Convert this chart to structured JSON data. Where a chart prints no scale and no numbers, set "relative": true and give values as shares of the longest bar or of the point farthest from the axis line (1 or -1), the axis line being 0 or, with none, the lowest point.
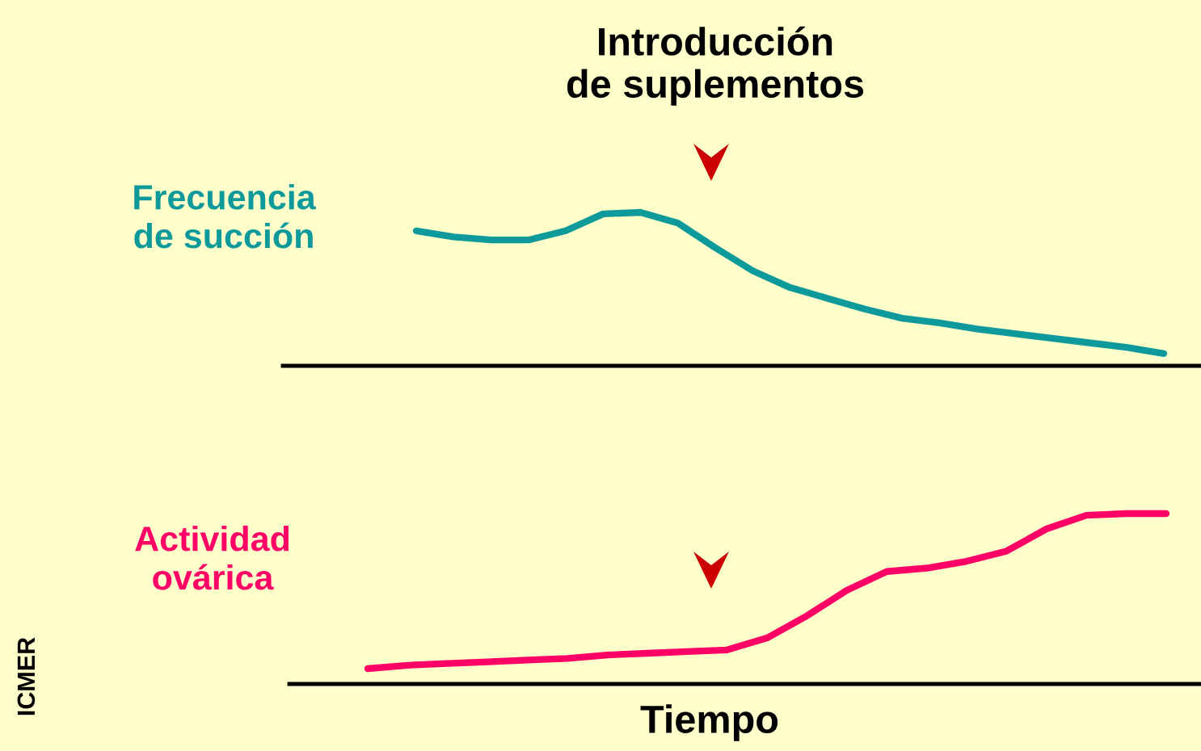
{
  "chart_data": [
    {
      "type": "line",
      "title": "Introducción\nde suplementos",
      "relative": true,
      "legend": false,
      "marker": "none",
      "line_style": "solid",
      "categories": [
        null,
        null,
        null,
        null,
        null,
        null,
        null,
        null,
        null,
        null,
        null,
        null,
        null,
        null,
        null,
        null,
        null,
        null,
        null,
        null,
        null
      ],
      "series": [
        {
          "name": "Frecuencia\nde succión",
          "color": "#0e9a9a",
          "values": [
            0.88,
            0.84,
            0.82,
            0.82,
            0.88,
            0.99,
            1,
            0.93,
            0.77,
            0.62,
            0.51,
            0.44,
            0.37,
            0.31,
            0.28,
            0.24,
            0.21,
            0.18,
            0.15,
            0.12,
            0.08
          ]
        }
      ]
    },
    {
      "type": "line",
      "xlabel": "Tiempo",
      "relative": true,
      "legend": false,
      "marker": "none",
      "line_style": "solid",
      "annotations": [
        "ICMER"
      ],
      "categories": [
        null,
        null,
        null,
        null,
        null,
        null,
        null,
        null,
        null,
        null,
        null,
        null,
        null,
        null,
        null,
        null,
        null,
        null,
        null,
        null,
        null
      ],
      "series": [
        {
          "name": "Actividad\novárica",
          "color": "#ff0066",
          "values": [
            0.09,
            0.11,
            0.12,
            0.13,
            0.14,
            0.15,
            0.17,
            0.18,
            0.19,
            0.2,
            0.27,
            0.4,
            0.55,
            0.66,
            0.68,
            0.72,
            0.78,
            0.91,
            0.99,
            1,
            1
          ]
        }
      ]
    }
  ]
}
